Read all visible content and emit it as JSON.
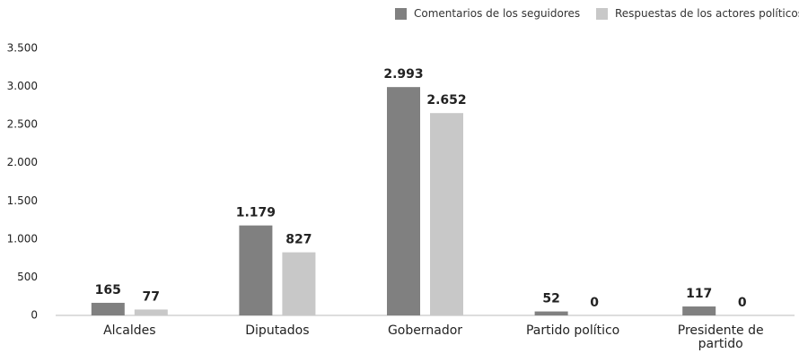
{
  "chart_data": {
    "type": "bar",
    "categories": [
      "Alcaldes",
      "Diputados",
      "Gobernador",
      "Partido político",
      "Presidente de partido"
    ],
    "series": [
      {
        "name": "Comentarios de los seguidores",
        "color": "#808080",
        "values": [
          165,
          1179,
          2993,
          52,
          117
        ],
        "value_labels": [
          "165",
          "1.179",
          "2.993",
          "52",
          "117"
        ]
      },
      {
        "name": "Respuestas de los actores políticos",
        "color": "#c8c8c8",
        "values": [
          77,
          827,
          2652,
          0,
          0
        ],
        "value_labels": [
          "77",
          "827",
          "2.652",
          "0",
          "0"
        ]
      }
    ],
    "ylim": [
      0,
      3500
    ],
    "yticks": [
      0,
      500,
      {
        "value": 1000,
        "label": "1.000"
      },
      {
        "value": 1500,
        "label": "1.500"
      },
      {
        "value": 2000,
        "label": "2.000"
      },
      {
        "value": 2500,
        "label": "2.500"
      },
      {
        "value": 3000,
        "label": "3.000"
      },
      {
        "value": 3500,
        "label": "3.500"
      }
    ],
    "grid": false,
    "legend": "top-right"
  }
}
